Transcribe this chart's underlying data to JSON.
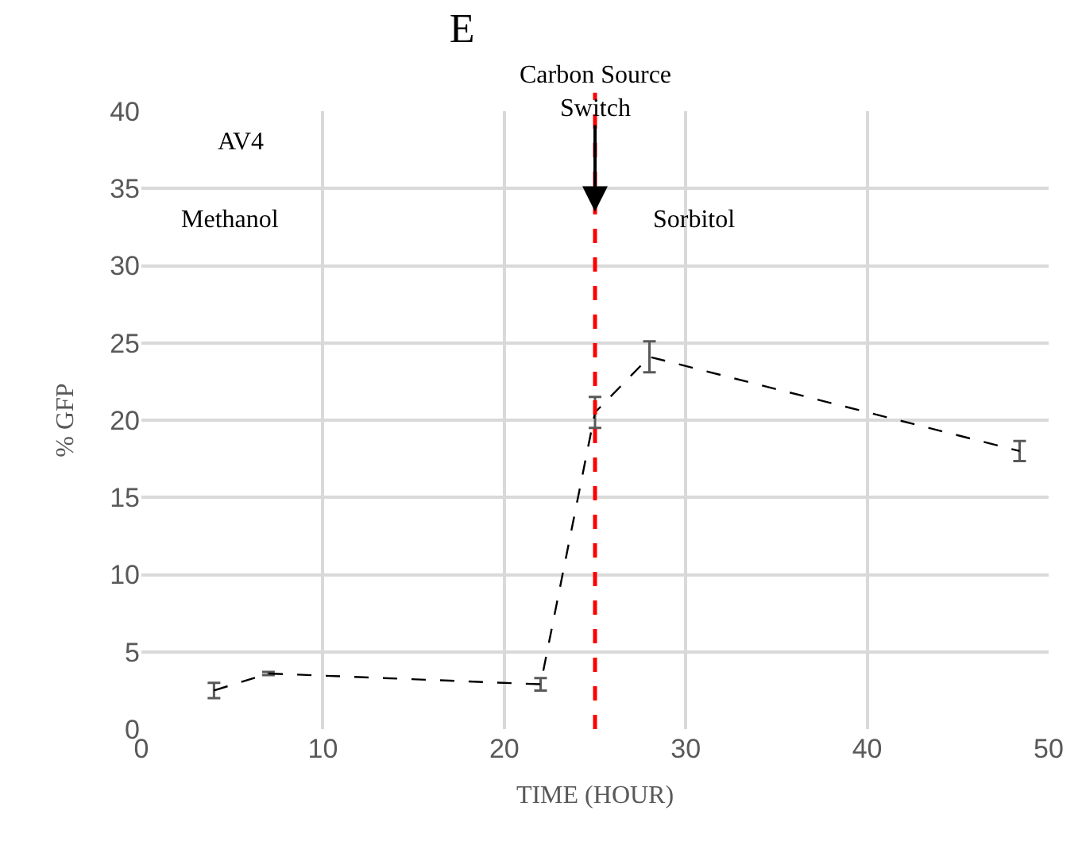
{
  "chart_data": {
    "type": "line",
    "title": "E",
    "xlabel": "TIME (HOUR)",
    "ylabel": "% GFP",
    "x": [
      4,
      7,
      22,
      25,
      28,
      48.4
    ],
    "series": [
      {
        "color": "#000000",
        "values": [
          2.5,
          3.6,
          2.9,
          20.5,
          24.1,
          18
        ],
        "errors": [
          0.5,
          0.1,
          0.4,
          1,
          1,
          0.65
        ]
      }
    ],
    "xlim": [
      0,
      50
    ],
    "xticks": [
      0,
      10,
      20,
      30,
      40,
      50
    ],
    "ylim": [
      0,
      40
    ],
    "yticks": [
      0,
      5,
      10,
      15,
      20,
      25,
      30,
      35,
      40
    ],
    "grid": true,
    "line_style": "dashed",
    "ref_lines": [
      {
        "axis": "x",
        "value": 25,
        "color": "#ff0000",
        "line_style": "dashed"
      }
    ],
    "annotations": [
      {
        "text": "Carbon Source\nSwitch",
        "x": 25,
        "y": 33.5
      },
      "AV4",
      "Methanol",
      "Sorbitol"
    ]
  }
}
